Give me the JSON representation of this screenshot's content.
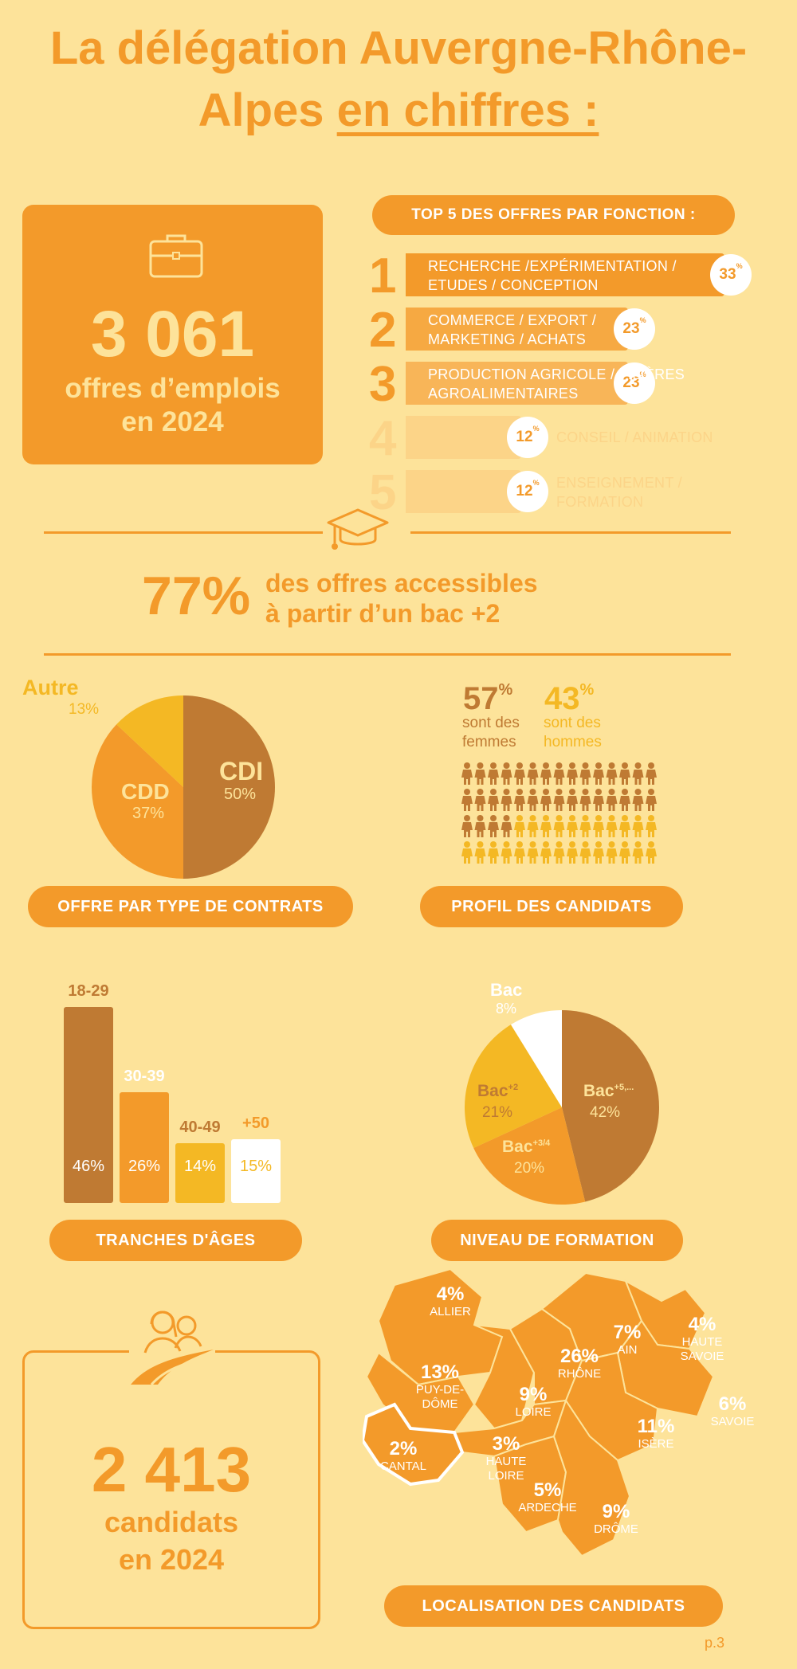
{
  "header": {
    "line1": "La délégation Auvergne-Rhône-",
    "line2_plain": "Alpes ",
    "line2_underlined": "en chiffres :"
  },
  "offers": {
    "value": "3 061",
    "line1": "offres d’emplois",
    "line2": "en 2024",
    "icon": "briefcase-icon"
  },
  "top5": {
    "title": "TOP 5 DES OFFRES PAR FONCTION :",
    "items": [
      {
        "rank": "1",
        "line1": "RECHERCHE /EXPÉRIMENTATION /",
        "line2": "ETUDES / CONCEPTION",
        "pct": "33",
        "fraction": 0.33
      },
      {
        "rank": "2",
        "line1": "COMMERCE / EXPORT /",
        "line2": "MARKETING / ACHATS",
        "pct": "23",
        "fraction": 0.23
      },
      {
        "rank": "3",
        "line1": " PRODUCTION AGRICOLE / FILIÈRES",
        "line2": "AGROALIMENTAIRES",
        "pct": "23",
        "fraction": 0.23
      },
      {
        "rank": "4",
        "line1": "CONSEIL / ANIMATION",
        "line2": "",
        "pct": "12",
        "fraction": 0.12
      },
      {
        "rank": "5",
        "line1": "ENSEIGNEMENT /",
        "line2": "FORMATION",
        "pct": "12",
        "fraction": 0.12
      }
    ],
    "pct_sign": "%"
  },
  "bac": {
    "icon": "graduation-cap-icon",
    "value": "77%",
    "line1": "des offres accessibles",
    "line2": "à partir d’un bac +2"
  },
  "contracts": {
    "pill": "OFFRE PAR TYPE DE CONTRATS",
    "autre_label": "Autre",
    "autre_pct": "13%",
    "cdd_label": "CDD",
    "cdd_pct": "37%",
    "cdi_label": "CDI",
    "cdi_pct": "50%"
  },
  "profile": {
    "pill": "PROFIL DES CANDIDATS",
    "women_value": "57",
    "women_pct_sign": "%",
    "women_line1": "sont des",
    "women_line2": "femmes",
    "men_value": "43",
    "men_pct_sign": "%",
    "men_line1": "sont des",
    "men_line2": "hommes",
    "icon": "person-icon"
  },
  "ages": {
    "pill": "TRANCHES D'ÂGES",
    "bars": [
      {
        "label": "18-29",
        "pct": "46%",
        "value": 46
      },
      {
        "label": "30-39",
        "pct": "26%",
        "value": 26
      },
      {
        "label": "40-49",
        "pct": "14%",
        "value": 14
      },
      {
        "label": "+50",
        "pct": "15%",
        "value": 15
      }
    ]
  },
  "education": {
    "pill": "NIVEAU DE FORMATION",
    "bac_label": "Bac",
    "bac_pct": "8%",
    "bac2_label": "Bac",
    "bac2_sup": "+2",
    "bac2_pct": "21%",
    "bac34_label": "Bac",
    "bac34_sup": "+3/4",
    "bac34_pct": "20%",
    "bac5_label": "Bac",
    "bac5_sup": "+5,...",
    "bac5_pct": "42%"
  },
  "candidates": {
    "icon": "farmers-icon",
    "value": "2 413",
    "line1": "candidats",
    "line2": "en 2024"
  },
  "map": {
    "pill": "LOCALISATION DES CANDIDATS",
    "regions": [
      {
        "pct": "4%",
        "name": "ALLIER"
      },
      {
        "pct": "13%",
        "name": "PUY-DE-",
        "name2": "DÔME"
      },
      {
        "pct": "2%",
        "name": "CANTAL"
      },
      {
        "pct": "3%",
        "name": "HAUTE",
        "name2": "LOIRE"
      },
      {
        "pct": "9%",
        "name": "LOIRE"
      },
      {
        "pct": "26%",
        "name": "RHÔNE"
      },
      {
        "pct": "7%",
        "name": "AIN"
      },
      {
        "pct": "4%",
        "name": "HAUTE",
        "name2": "SAVOIE"
      },
      {
        "pct": "6%",
        "name": "SAVOIE"
      },
      {
        "pct": "11%",
        "name": "ISÈRE"
      },
      {
        "pct": "5%",
        "name": "ARDECHE"
      },
      {
        "pct": "9%",
        "name": "DRÔME"
      }
    ]
  },
  "page_number": "p.3",
  "colors": {
    "background": "#fde39a",
    "orange": "#f39a2a",
    "brown": "#bf7a33",
    "yellow": "#f4b824",
    "light": "#fcd488",
    "white": "#ffffff"
  }
}
